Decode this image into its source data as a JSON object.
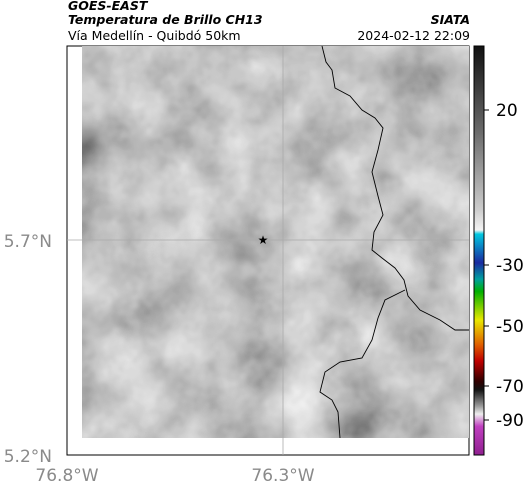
{
  "header": {
    "source": "GOES-EAST",
    "title": "Temperatura de Brillo CH13",
    "subtitle": "Vía Medellín - Quibdó 50km",
    "agency": "SIATA",
    "timestamp": "2024-02-12 22:09"
  },
  "map": {
    "lat_labels": [
      "5.7°N",
      "5.2°N"
    ],
    "lon_labels": [
      "76.8°W",
      "76.3°W"
    ]
  },
  "colorbar": {
    "tick_labels": [
      "20",
      "-30",
      "-50",
      "-70",
      "-90"
    ]
  }
}
